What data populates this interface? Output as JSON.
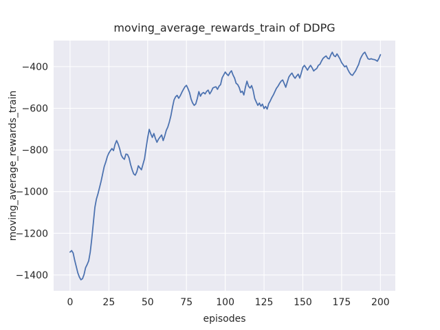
{
  "chart_data": {
    "type": "line",
    "title": "moving_average_rewards_train of DDPG",
    "xlabel": "episodes",
    "ylabel": "moving_average_rewards_train",
    "xlim": [
      -10.6,
      209.6
    ],
    "ylim": [
      -1476,
      -275
    ],
    "grid": true,
    "legend": "none",
    "x_ticks": [
      0,
      25,
      50,
      75,
      100,
      125,
      150,
      175,
      200
    ],
    "x_tick_labels": [
      "0",
      "25",
      "50",
      "75",
      "100",
      "125",
      "150",
      "175",
      "200"
    ],
    "y_ticks": [
      -400,
      -600,
      -800,
      -1000,
      -1200,
      -1400
    ],
    "y_tick_labels": [
      "−400",
      "−600",
      "−800",
      "−1000",
      "−1200",
      "−1400"
    ],
    "colors": {
      "line": "#4C72B0",
      "axes_background": "#EAEAF2",
      "grid": "#FFFFFF",
      "text": "#262626",
      "figure_background": "#FFFFFF"
    },
    "series": [
      {
        "name": "moving_average_rewards_train",
        "x": [
          0,
          1,
          2,
          3,
          4,
          5,
          6,
          7,
          8,
          9,
          10,
          11,
          12,
          13,
          14,
          15,
          16,
          17,
          18,
          19,
          20,
          21,
          22,
          23,
          24,
          25,
          26,
          27,
          28,
          29,
          30,
          31,
          32,
          33,
          34,
          35,
          36,
          37,
          38,
          39,
          40,
          41,
          42,
          43,
          44,
          45,
          46,
          47,
          48,
          49,
          50,
          51,
          52,
          53,
          54,
          55,
          56,
          57,
          58,
          59,
          60,
          61,
          62,
          63,
          64,
          65,
          66,
          67,
          68,
          69,
          70,
          71,
          72,
          73,
          74,
          75,
          76,
          77,
          78,
          79,
          80,
          81,
          82,
          83,
          84,
          85,
          86,
          87,
          88,
          89,
          90,
          91,
          92,
          93,
          94,
          95,
          96,
          97,
          98,
          99,
          100,
          101,
          102,
          103,
          104,
          105,
          106,
          107,
          108,
          109,
          110,
          111,
          112,
          113,
          114,
          115,
          116,
          117,
          118,
          119,
          120,
          121,
          122,
          123,
          124,
          125,
          126,
          127,
          128,
          129,
          130,
          131,
          132,
          133,
          134,
          135,
          136,
          137,
          138,
          139,
          140,
          141,
          142,
          143,
          144,
          145,
          146,
          147,
          148,
          149,
          150,
          151,
          152,
          153,
          154,
          155,
          156,
          157,
          158,
          159,
          160,
          161,
          162,
          163,
          164,
          165,
          166,
          167,
          168,
          169,
          170,
          171,
          172,
          173,
          174,
          175,
          176,
          177,
          178,
          179,
          180,
          181,
          182,
          183,
          184,
          185,
          186,
          187,
          188,
          189,
          190,
          191,
          192,
          193,
          194,
          195,
          196,
          197,
          198,
          199,
          200
        ],
        "y": [
          -1290,
          -1283,
          -1295,
          -1330,
          -1360,
          -1390,
          -1410,
          -1423,
          -1418,
          -1398,
          -1365,
          -1350,
          -1332,
          -1290,
          -1225,
          -1150,
          -1075,
          -1035,
          -1010,
          -980,
          -950,
          -915,
          -880,
          -858,
          -832,
          -815,
          -803,
          -793,
          -803,
          -773,
          -755,
          -772,
          -795,
          -825,
          -838,
          -845,
          -820,
          -822,
          -838,
          -870,
          -895,
          -915,
          -921,
          -905,
          -876,
          -886,
          -895,
          -868,
          -842,
          -790,
          -742,
          -701,
          -722,
          -740,
          -721,
          -745,
          -763,
          -748,
          -738,
          -728,
          -755,
          -733,
          -706,
          -690,
          -665,
          -635,
          -595,
          -560,
          -545,
          -538,
          -552,
          -540,
          -524,
          -510,
          -497,
          -490,
          -506,
          -525,
          -556,
          -575,
          -586,
          -579,
          -553,
          -520,
          -542,
          -529,
          -524,
          -531,
          -519,
          -513,
          -531,
          -519,
          -503,
          -499,
          -497,
          -509,
          -494,
          -486,
          -454,
          -440,
          -426,
          -436,
          -443,
          -429,
          -420,
          -440,
          -455,
          -480,
          -486,
          -500,
          -524,
          -518,
          -536,
          -499,
          -470,
          -494,
          -503,
          -491,
          -515,
          -553,
          -570,
          -586,
          -575,
          -590,
          -580,
          -601,
          -591,
          -604,
          -578,
          -565,
          -549,
          -536,
          -520,
          -504,
          -494,
          -481,
          -470,
          -464,
          -481,
          -499,
          -474,
          -450,
          -439,
          -431,
          -446,
          -456,
          -445,
          -436,
          -455,
          -431,
          -404,
          -394,
          -405,
          -417,
          -404,
          -394,
          -406,
          -421,
          -414,
          -409,
          -394,
          -389,
          -374,
          -361,
          -354,
          -349,
          -360,
          -363,
          -344,
          -331,
          -347,
          -352,
          -339,
          -351,
          -364,
          -381,
          -391,
          -401,
          -396,
          -414,
          -428,
          -438,
          -442,
          -431,
          -420,
          -404,
          -389,
          -364,
          -349,
          -337,
          -331,
          -347,
          -362,
          -365,
          -362,
          -365,
          -366,
          -369,
          -374,
          -361,
          -343
        ]
      }
    ]
  }
}
